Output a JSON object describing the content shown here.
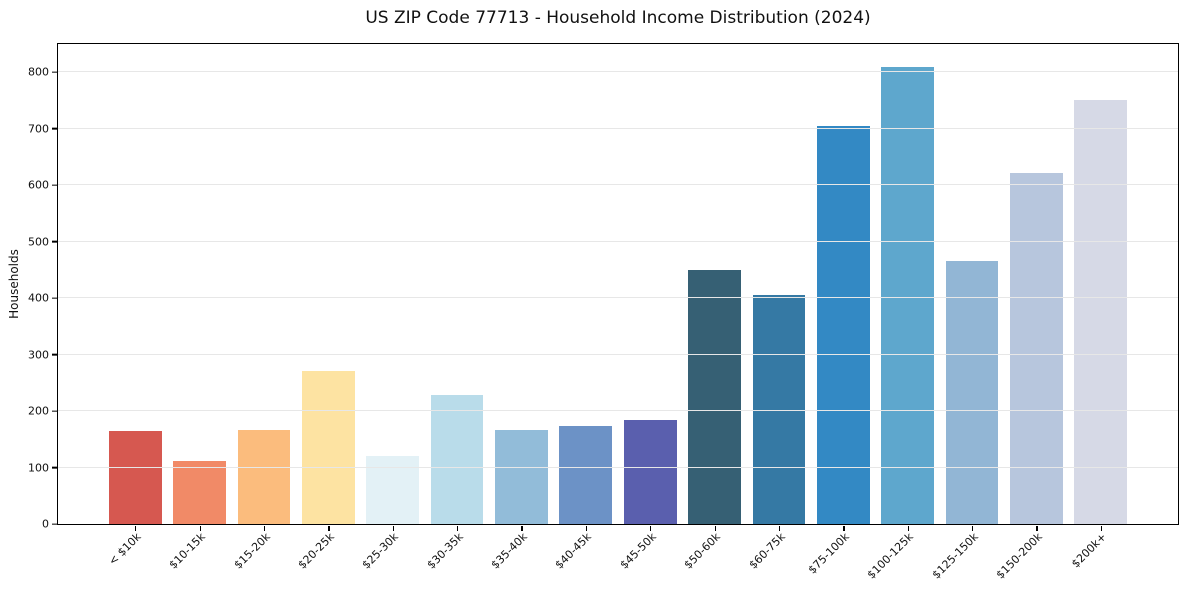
{
  "title": "US ZIP Code 77713 - Household Income Distribution (2024)",
  "chart_data": {
    "type": "bar",
    "title": "US ZIP Code 77713 - Household Income Distribution (2024)",
    "xlabel": "",
    "ylabel": "Households",
    "categories": [
      "< $10k",
      "$10-15k",
      "$15-20k",
      "$20-25k",
      "$25-30k",
      "$30-35k",
      "$35-40k",
      "$40-45k",
      "$45-50k",
      "$50-60k",
      "$60-75k",
      "$75-100k",
      "$100-125k",
      "$125-150k",
      "$150-200k",
      "$200k+"
    ],
    "values": [
      164,
      111,
      166,
      271,
      120,
      229,
      167,
      174,
      185,
      450,
      405,
      705,
      810,
      466,
      621,
      750
    ],
    "bar_colors": [
      "#d65850",
      "#f18a67",
      "#fbbc7d",
      "#fde3a2",
      "#e3f1f6",
      "#b9dcea",
      "#92bcd9",
      "#6c92c6",
      "#5a5fae",
      "#366074",
      "#3579a4",
      "#3389c4",
      "#5ea7cd",
      "#92b6d5",
      "#b7c6dd",
      "#d6d9e6"
    ],
    "yticks": [
      0,
      100,
      200,
      300,
      400,
      500,
      600,
      700,
      800
    ],
    "ylim": [
      0,
      850
    ],
    "grid": "horizontal-only",
    "legend_position": "none",
    "x_tick_rotation": 45
  },
  "colors": {
    "background": "#ffffff",
    "grid": "#e7e7e7",
    "axis": "#000000",
    "text": "#111111"
  }
}
